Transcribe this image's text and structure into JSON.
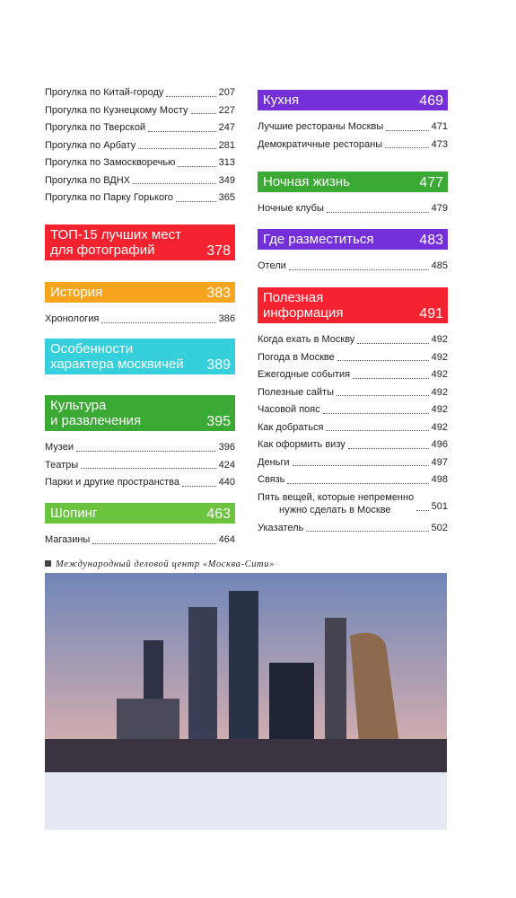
{
  "left": [
    {
      "entries": [
        {
          "label": "Прогулка по Китай-городу",
          "page": 207
        },
        {
          "label": "Прогулка по Кузнецкому Мосту",
          "page": 227
        },
        {
          "label": "Прогулка по Тверской",
          "page": 247
        },
        {
          "label": "Прогулка по Арбату",
          "page": 281
        },
        {
          "label": "Прогулка по Замоскворечью",
          "page": 313
        },
        {
          "label": "Прогулка по ВДНХ",
          "page": 349
        },
        {
          "label": "Прогулка по Парку Горького",
          "page": 365
        }
      ]
    },
    {
      "title": [
        "ТОП-15 лучших мест",
        "для фотографий"
      ],
      "page": 378,
      "color": "#f52330",
      "entries": []
    },
    {
      "title": [
        "История"
      ],
      "page": 383,
      "color": "#f7a51e",
      "entries": [
        {
          "label": "Хронология",
          "page": 386
        }
      ]
    },
    {
      "title": [
        "Особенности",
        "характера москвичей"
      ],
      "page": 389,
      "color": "#35d0dc",
      "entries": []
    },
    {
      "title": [
        "Культура",
        "и развлечения"
      ],
      "page": 395,
      "color": "#3aaa35",
      "entries": [
        {
          "label": "Музеи",
          "page": 396
        },
        {
          "label": "Театры",
          "page": 424
        },
        {
          "label": "Парки и другие пространства",
          "page": 440
        }
      ]
    },
    {
      "title": [
        "Шопинг"
      ],
      "page": 463,
      "color": "#6cc33e",
      "entries": [
        {
          "label": "Магазины",
          "page": 464
        }
      ]
    }
  ],
  "right": [
    {
      "title": [
        "Кухня"
      ],
      "page": 469,
      "color": "#742fd8",
      "entries": [
        {
          "label": "Лучшие рестораны Москвы",
          "page": 471
        },
        {
          "label": "Демократичные рестораны",
          "page": 473
        }
      ]
    },
    {
      "title": [
        "Ночная жизнь"
      ],
      "page": 477,
      "color": "#3aaa35",
      "entries": [
        {
          "label": "Ночные клубы",
          "page": 479
        }
      ]
    },
    {
      "title": [
        "Где разместиться"
      ],
      "page": 483,
      "color": "#742fd8",
      "entries": [
        {
          "label": "Отели",
          "page": 485
        }
      ]
    },
    {
      "title": [
        "Полезная",
        "информация"
      ],
      "page": 491,
      "color": "#f52330",
      "entries": [
        {
          "label": "Когда ехать в Москву",
          "page": 492
        },
        {
          "label": "Погода в Москве",
          "page": 492
        },
        {
          "label": "Ежегодные события",
          "page": 492
        },
        {
          "label": "Полезные сайты",
          "page": 492
        },
        {
          "label": "Часовой пояс",
          "page": 492
        },
        {
          "label": "Как добраться",
          "page": 492
        },
        {
          "label": "Как оформить визу",
          "page": 496
        },
        {
          "label": "Деньги",
          "page": 497
        },
        {
          "label": "Связь",
          "page": 498
        },
        {
          "label": [
            "Пять вещей, которые непременно",
            "нужно сделать в Москве"
          ],
          "page": 501
        },
        {
          "label": "Указатель",
          "page": 502
        }
      ]
    }
  ],
  "photo_caption": "Международный деловой центр «Москва-Сити»"
}
